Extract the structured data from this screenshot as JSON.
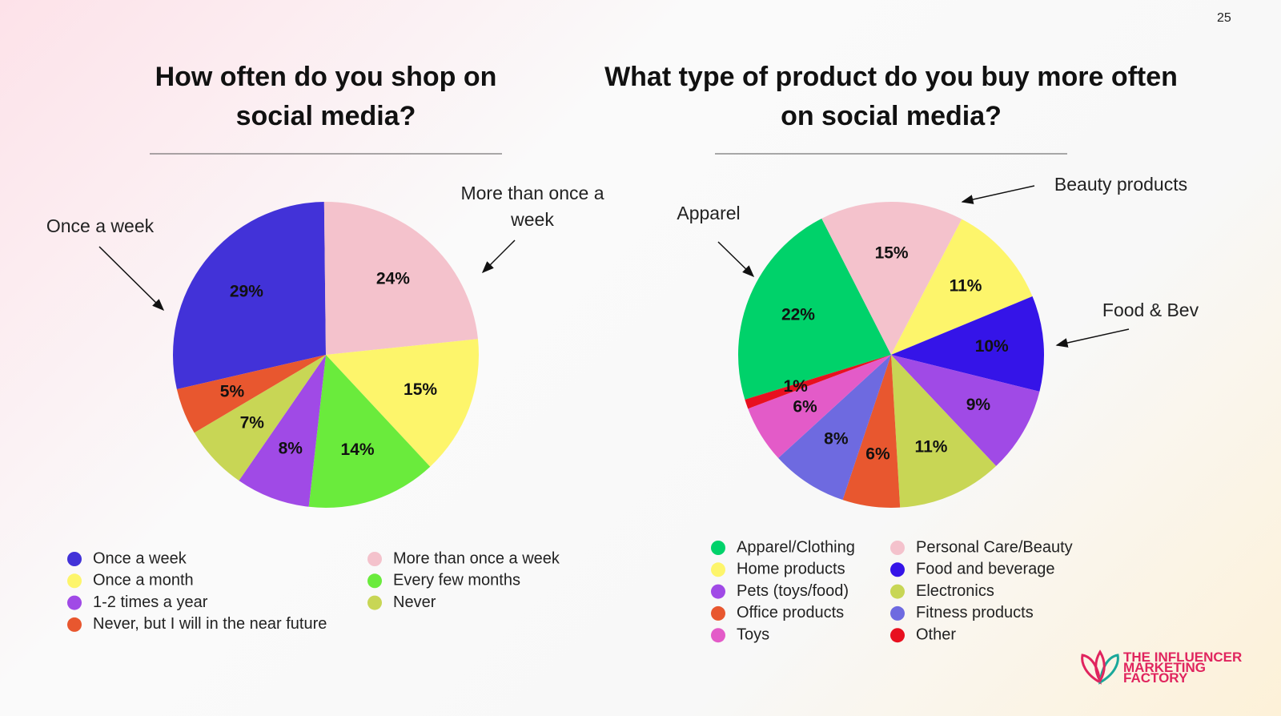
{
  "page_number": "25",
  "logo": [
    "THE INFLUENCER",
    "MARKETING",
    "FACTORY"
  ],
  "chart_data": [
    {
      "type": "pie",
      "title": "How often do you shop on social media?",
      "categories": [
        "Once a week",
        "More than once a week",
        "Once a month",
        "Every few months",
        "1-2 times a year",
        "Never",
        "Never, but I will in the near future"
      ],
      "values": [
        29,
        24,
        15,
        14,
        8,
        7,
        5
      ],
      "value_labels": [
        "29%",
        "24%",
        "15%",
        "14%",
        "8%",
        "7%",
        "5%"
      ],
      "colors": [
        "#4232d8",
        "#f4c2cc",
        "#fdf56b",
        "#6aeb3c",
        "#a04ae6",
        "#c8d655",
        "#e8572f"
      ],
      "annotations": [
        "Once a week",
        "More than once a week"
      ]
    },
    {
      "type": "pie",
      "title": "What type of product do you buy more often on social media?",
      "categories": [
        "Apparel/Clothing",
        "Personal Care/Beauty",
        "Home products",
        "Food and beverage",
        "Pets (toys/food)",
        "Electronics",
        "Office products",
        "Fitness products",
        "Toys",
        "Other"
      ],
      "values": [
        22,
        15,
        11,
        10,
        9,
        11,
        6,
        8,
        6,
        1
      ],
      "value_labels": [
        "22%",
        "15%",
        "11%",
        "10%",
        "9%",
        "11%",
        "6%",
        "8%",
        "6%",
        "1%"
      ],
      "colors": [
        "#00d26a",
        "#f4c2cc",
        "#fdf56b",
        "#3514e8",
        "#a04ae6",
        "#c8d655",
        "#e8572f",
        "#6e6ae0",
        "#e35bc8",
        "#e8101f"
      ],
      "annotations": [
        "Apparel",
        "Beauty products",
        "Food & Bev"
      ]
    }
  ]
}
